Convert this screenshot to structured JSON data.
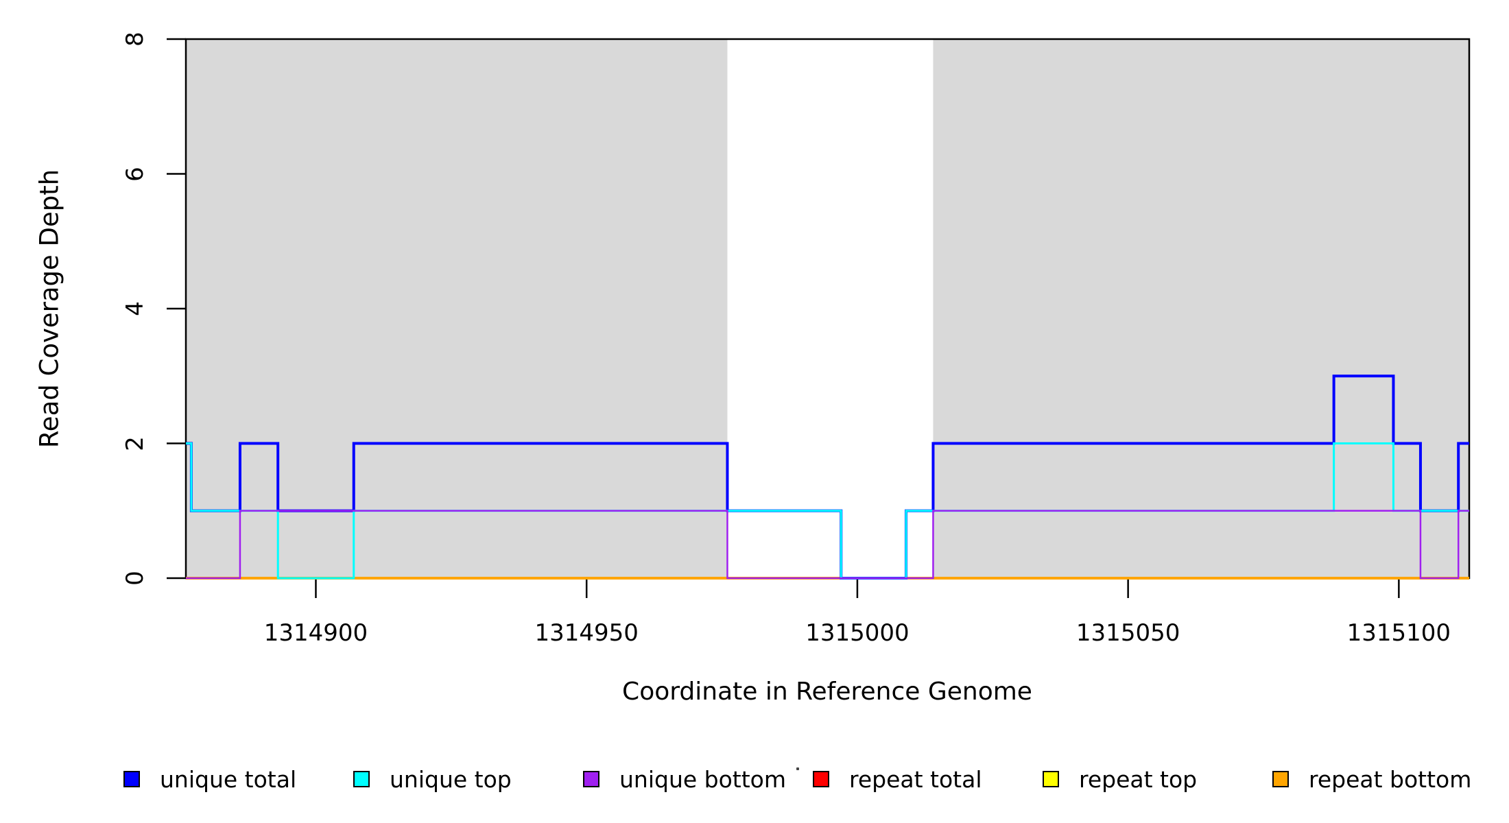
{
  "figure": {
    "xlabel": "Coordinate in Reference Genome",
    "ylabel": "Read Coverage Depth"
  },
  "legend": {
    "items": [
      {
        "label": "unique total",
        "color": "#0000FF"
      },
      {
        "label": "unique top",
        "color": "#00FFFF"
      },
      {
        "label": "unique bottom",
        "color": "#A020F0"
      },
      {
        "label": "repeat total",
        "color": "#FF0000"
      },
      {
        "label": "repeat top",
        "color": "#FFFF00"
      },
      {
        "label": "repeat bottom",
        "color": "#FFA500"
      }
    ],
    "stray_dot_present": true
  },
  "chart_data": {
    "type": "line",
    "subtype": "step-after-coverage",
    "title": "",
    "xlabel": "Coordinate in Reference Genome",
    "ylabel": "Read Coverage Depth",
    "xlim": [
      1314876,
      1315113
    ],
    "ylim": [
      0,
      8
    ],
    "xticks": [
      1314900,
      1314950,
      1315000,
      1315050,
      1315100
    ],
    "yticks": [
      0,
      2,
      4,
      6,
      8
    ],
    "grid": false,
    "legend_position": "bottom-horizontal",
    "axis_color": "#000000",
    "shading": {
      "color": "#D9D9D9",
      "regions": [
        {
          "from": 1314876,
          "to": 1314976
        },
        {
          "from": 1315014,
          "to": 1315113
        }
      ]
    },
    "series": [
      {
        "name": "repeat total",
        "color": "#FF0000",
        "width": 3,
        "steps": [
          [
            1314876,
            0
          ],
          [
            1315113,
            0
          ]
        ]
      },
      {
        "name": "repeat top",
        "color": "#FFFF00",
        "width": 2.5,
        "steps": [
          [
            1314876,
            0
          ],
          [
            1315113,
            0
          ]
        ]
      },
      {
        "name": "repeat bottom",
        "color": "#FFA500",
        "width": 4,
        "steps": [
          [
            1314876,
            0
          ],
          [
            1315113,
            0
          ]
        ]
      },
      {
        "name": "unique total",
        "color": "#0000FF",
        "width": 4,
        "steps": [
          [
            1314876,
            2
          ],
          [
            1314877,
            1
          ],
          [
            1314886,
            2
          ],
          [
            1314893,
            1
          ],
          [
            1314907,
            2
          ],
          [
            1314976,
            1
          ],
          [
            1314997,
            0
          ],
          [
            1315009,
            1
          ],
          [
            1315014,
            2
          ],
          [
            1315088,
            3
          ],
          [
            1315099,
            2
          ],
          [
            1315104,
            1
          ],
          [
            1315111,
            2
          ],
          [
            1315113,
            2
          ]
        ]
      },
      {
        "name": "unique top",
        "color": "#00FFFF",
        "width": 3,
        "steps": [
          [
            1314876,
            2
          ],
          [
            1314877,
            1
          ],
          [
            1314893,
            0
          ],
          [
            1314907,
            1
          ],
          [
            1314997,
            0
          ],
          [
            1315009,
            1
          ],
          [
            1315088,
            2
          ],
          [
            1315099,
            1
          ],
          [
            1315113,
            1
          ]
        ]
      },
      {
        "name": "unique bottom",
        "color": "#A020F0",
        "width": 2.5,
        "steps": [
          [
            1314876,
            0
          ],
          [
            1314886,
            1
          ],
          [
            1314976,
            0
          ],
          [
            1315014,
            1
          ],
          [
            1315104,
            0
          ],
          [
            1315111,
            1
          ],
          [
            1315113,
            1
          ]
        ]
      }
    ]
  }
}
